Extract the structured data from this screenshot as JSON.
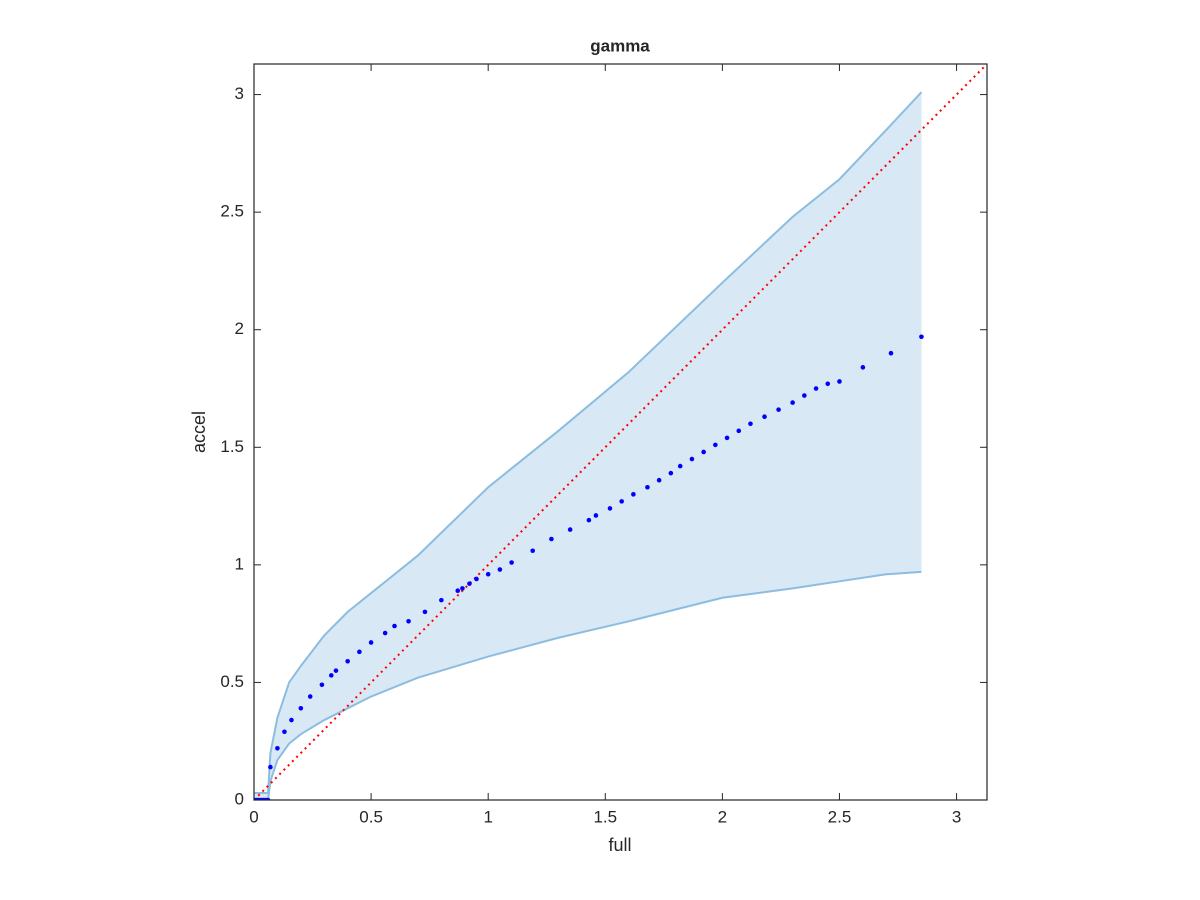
{
  "chart_data": {
    "type": "scatter",
    "title": "gamma",
    "x_label": "full",
    "y_label": "accel",
    "x": [
      0.0,
      0.01,
      0.02,
      0.03,
      0.04,
      0.05,
      0.06,
      0.07,
      0.1,
      0.13,
      0.16,
      0.2,
      0.24,
      0.29,
      0.33,
      0.35,
      0.4,
      0.45,
      0.5,
      0.56,
      0.6,
      0.66,
      0.73,
      0.8,
      0.87,
      0.89,
      0.92,
      0.95,
      1.0,
      1.05,
      1.1,
      1.19,
      1.27,
      1.35,
      1.43,
      1.46,
      1.52,
      1.57,
      1.62,
      1.68,
      1.73,
      1.78,
      1.82,
      1.87,
      1.92,
      1.97,
      2.02,
      2.07,
      2.12,
      2.18,
      2.24,
      2.3,
      2.35,
      2.4,
      2.45,
      2.5,
      2.6,
      2.72,
      2.85
    ],
    "values": [
      0,
      0,
      0,
      0,
      0,
      0,
      0,
      0.14,
      0.22,
      0.29,
      0.34,
      0.39,
      0.44,
      0.49,
      0.53,
      0.55,
      0.59,
      0.63,
      0.67,
      0.71,
      0.74,
      0.76,
      0.8,
      0.85,
      0.89,
      0.9,
      0.92,
      0.94,
      0.96,
      0.98,
      1.01,
      1.06,
      1.11,
      1.15,
      1.19,
      1.21,
      1.24,
      1.27,
      1.3,
      1.33,
      1.36,
      1.39,
      1.42,
      1.45,
      1.48,
      1.51,
      1.54,
      1.57,
      1.6,
      1.63,
      1.66,
      1.69,
      1.72,
      1.75,
      1.77,
      1.78,
      1.84,
      1.9,
      1.97
    ],
    "color": "#0000ff",
    "band": {
      "color": "#8cbde0",
      "fill": "#d8e8f4",
      "x": [
        0,
        0.06,
        0.07,
        0.1,
        0.15,
        0.2,
        0.3,
        0.4,
        0.5,
        0.7,
        1.0,
        1.3,
        1.6,
        2.0,
        2.3,
        2.5,
        2.7,
        2.85
      ],
      "upper": [
        0.03,
        0.03,
        0.2,
        0.35,
        0.5,
        0.57,
        0.7,
        0.8,
        0.88,
        1.04,
        1.33,
        1.57,
        1.82,
        2.2,
        2.48,
        2.64,
        2.85,
        3.01
      ],
      "lower": [
        0,
        0,
        0.08,
        0.17,
        0.24,
        0.28,
        0.34,
        0.39,
        0.44,
        0.52,
        0.61,
        0.69,
        0.76,
        0.86,
        0.9,
        0.93,
        0.96,
        0.97
      ]
    },
    "diagonal": {
      "color": "#ff0000",
      "x": [
        0,
        3.13
      ],
      "y": [
        0,
        3.13
      ]
    },
    "xlim": [
      0,
      3.13
    ],
    "ylim": [
      0,
      3.13
    ],
    "xticks": [
      0,
      0.5,
      1,
      1.5,
      2,
      2.5,
      3
    ],
    "yticks": [
      0,
      0.5,
      1,
      1.5,
      2,
      2.5,
      3
    ]
  }
}
